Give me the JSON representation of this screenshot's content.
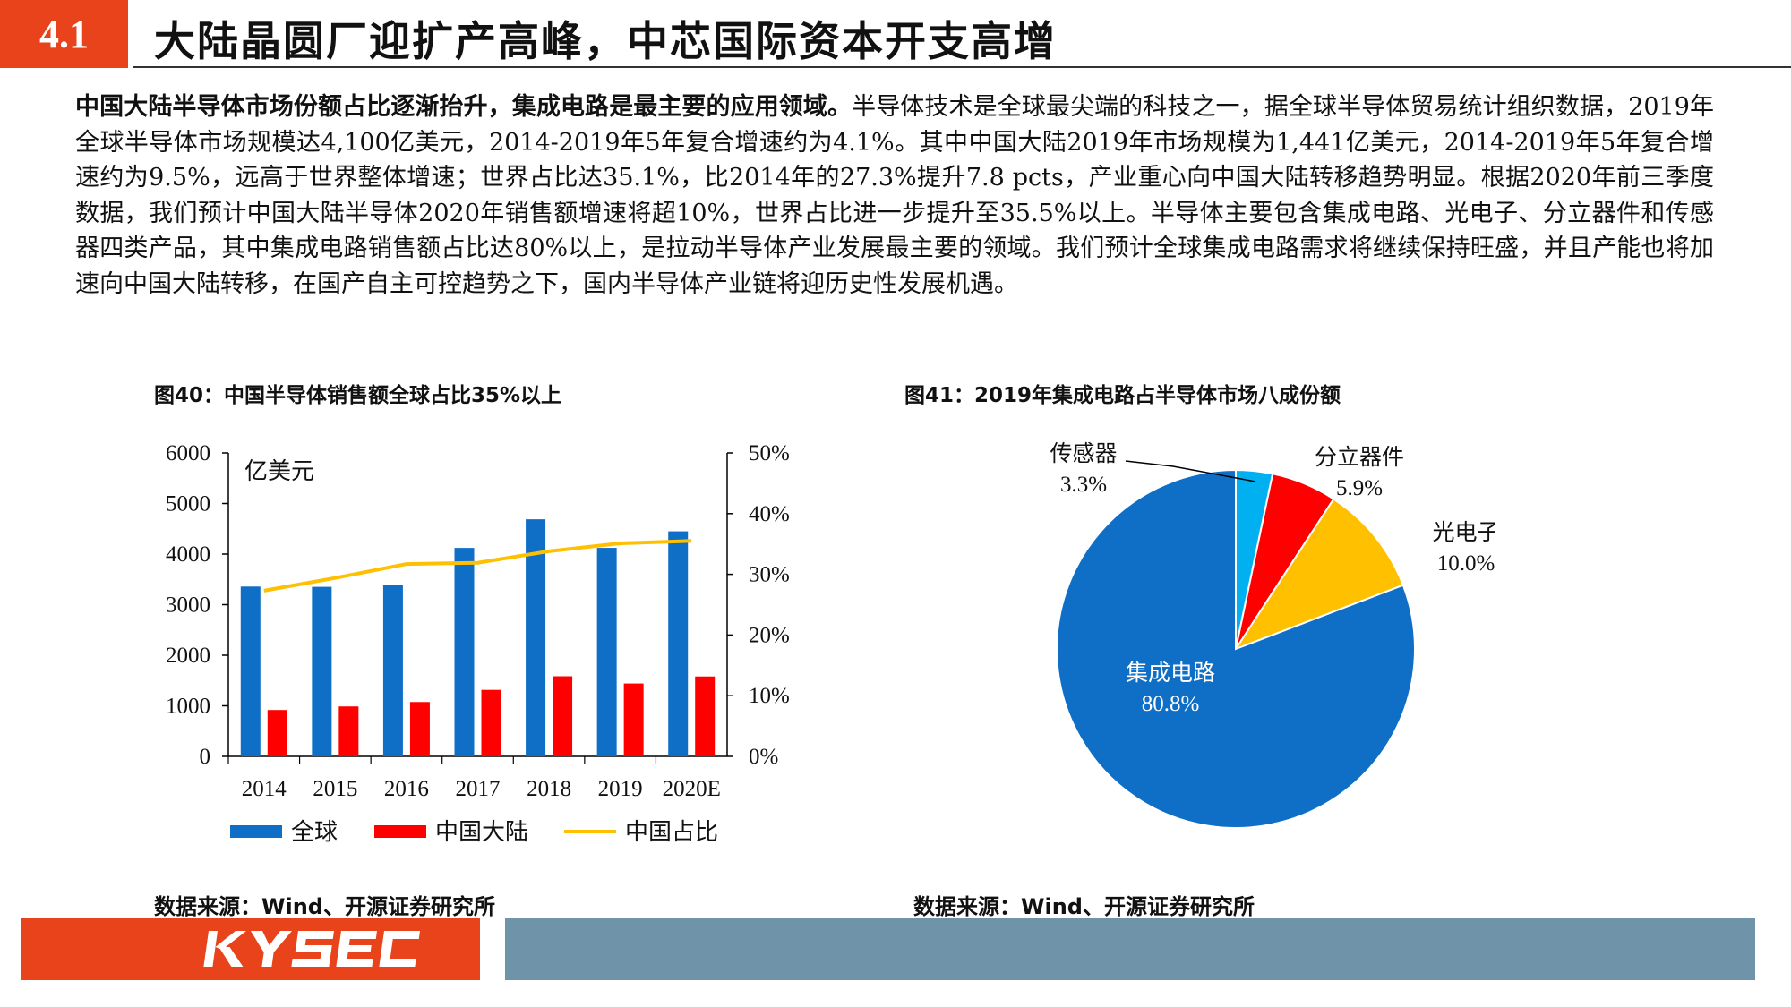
{
  "header": {
    "section": "4.1",
    "title": "大陆晶圆厂迎扩产高峰，中芯国际资本开支高增"
  },
  "intro": {
    "lead": "中国大陆半导体市场份额占比逐渐抬升，集成电路是最主要的应用领域。",
    "body": "半导体技术是全球最尖端的科技之一，据全球半导体贸易统计组织数据，2019年全球半导体市场规模达4,100亿美元，2014-2019年5年复合增速约为4.1%。其中中国大陆2019年市场规模为1,441亿美元，2014-2019年5年复合增速约为9.5%，远高于世界整体增速；世界占比达35.1%，比2014年的27.3%提升7.8 pcts，产业重心向中国大陆转移趋势明显。根据2020年前三季度数据，我们预计中国大陆半导体2020年销售额增速将超10%，世界占比进一步提升至35.5%以上。半导体主要包含集成电路、光电子、分立器件和传感器四类产品，其中集成电路销售额占比达80%以上，是拉动半导体产业发展最主要的领域。我们预计全球集成电路需求将继续保持旺盛，并且产能也将加速向中国大陆转移，在国产自主可控趋势之下，国内半导体产业链将迎历史性发展机遇。"
  },
  "figures": {
    "fig40_title": "图40：中国半导体销售额全球占比35%以上",
    "fig41_title": "图41：2019年集成电路占半导体市场八成份额",
    "source_left": "数据来源：Wind、开源证券研究所",
    "source_right": "数据来源：Wind、开源证券研究所"
  },
  "colors": {
    "accent": "#e8431b",
    "footer_bar": "#6f93a9",
    "global": "#0f6fc6",
    "china": "#ff0000",
    "share": "#ffc000",
    "sensor": "#00b0f0"
  },
  "chart_data": [
    {
      "type": "bar",
      "categories": [
        "2014",
        "2015",
        "2016",
        "2017",
        "2018",
        "2019",
        "2020E"
      ],
      "ylabel": "亿美元",
      "ylim": [
        0,
        6000
      ],
      "yticks": [
        "0",
        "1000",
        "2000",
        "3000",
        "4000",
        "5000",
        "6000"
      ],
      "y2lim": [
        0,
        0.5
      ],
      "y2ticks": [
        "0%",
        "10%",
        "20%",
        "30%",
        "40%",
        "50%"
      ],
      "series": [
        {
          "name": "全球",
          "type": "bar",
          "axis": "left",
          "color": "#0f6fc6",
          "values": [
            3358,
            3352,
            3389,
            4122,
            4688,
            4123,
            4450
          ]
        },
        {
          "name": "中国大陆",
          "type": "bar",
          "axis": "left",
          "color": "#ff0000",
          "values": [
            917,
            987,
            1075,
            1315,
            1584,
            1441,
            1580
          ]
        },
        {
          "name": "中国占比",
          "type": "line",
          "axis": "right",
          "color": "#ffc000",
          "values": [
            0.273,
            0.294,
            0.317,
            0.319,
            0.338,
            0.351,
            0.355
          ]
        }
      ],
      "legend": "bottom",
      "grid": false
    },
    {
      "type": "pie",
      "slices": [
        {
          "label": "传感器",
          "value": 3.3,
          "text": "3.3%",
          "color": "#00b0f0"
        },
        {
          "label": "分立器件",
          "value": 5.9,
          "text": "5.9%",
          "color": "#ff0000"
        },
        {
          "label": "光电子",
          "value": 10.0,
          "text": "10.0%",
          "color": "#ffc000"
        },
        {
          "label": "集成电路",
          "value": 80.8,
          "text": "80.8%",
          "color": "#0f6fc6"
        }
      ]
    }
  ]
}
